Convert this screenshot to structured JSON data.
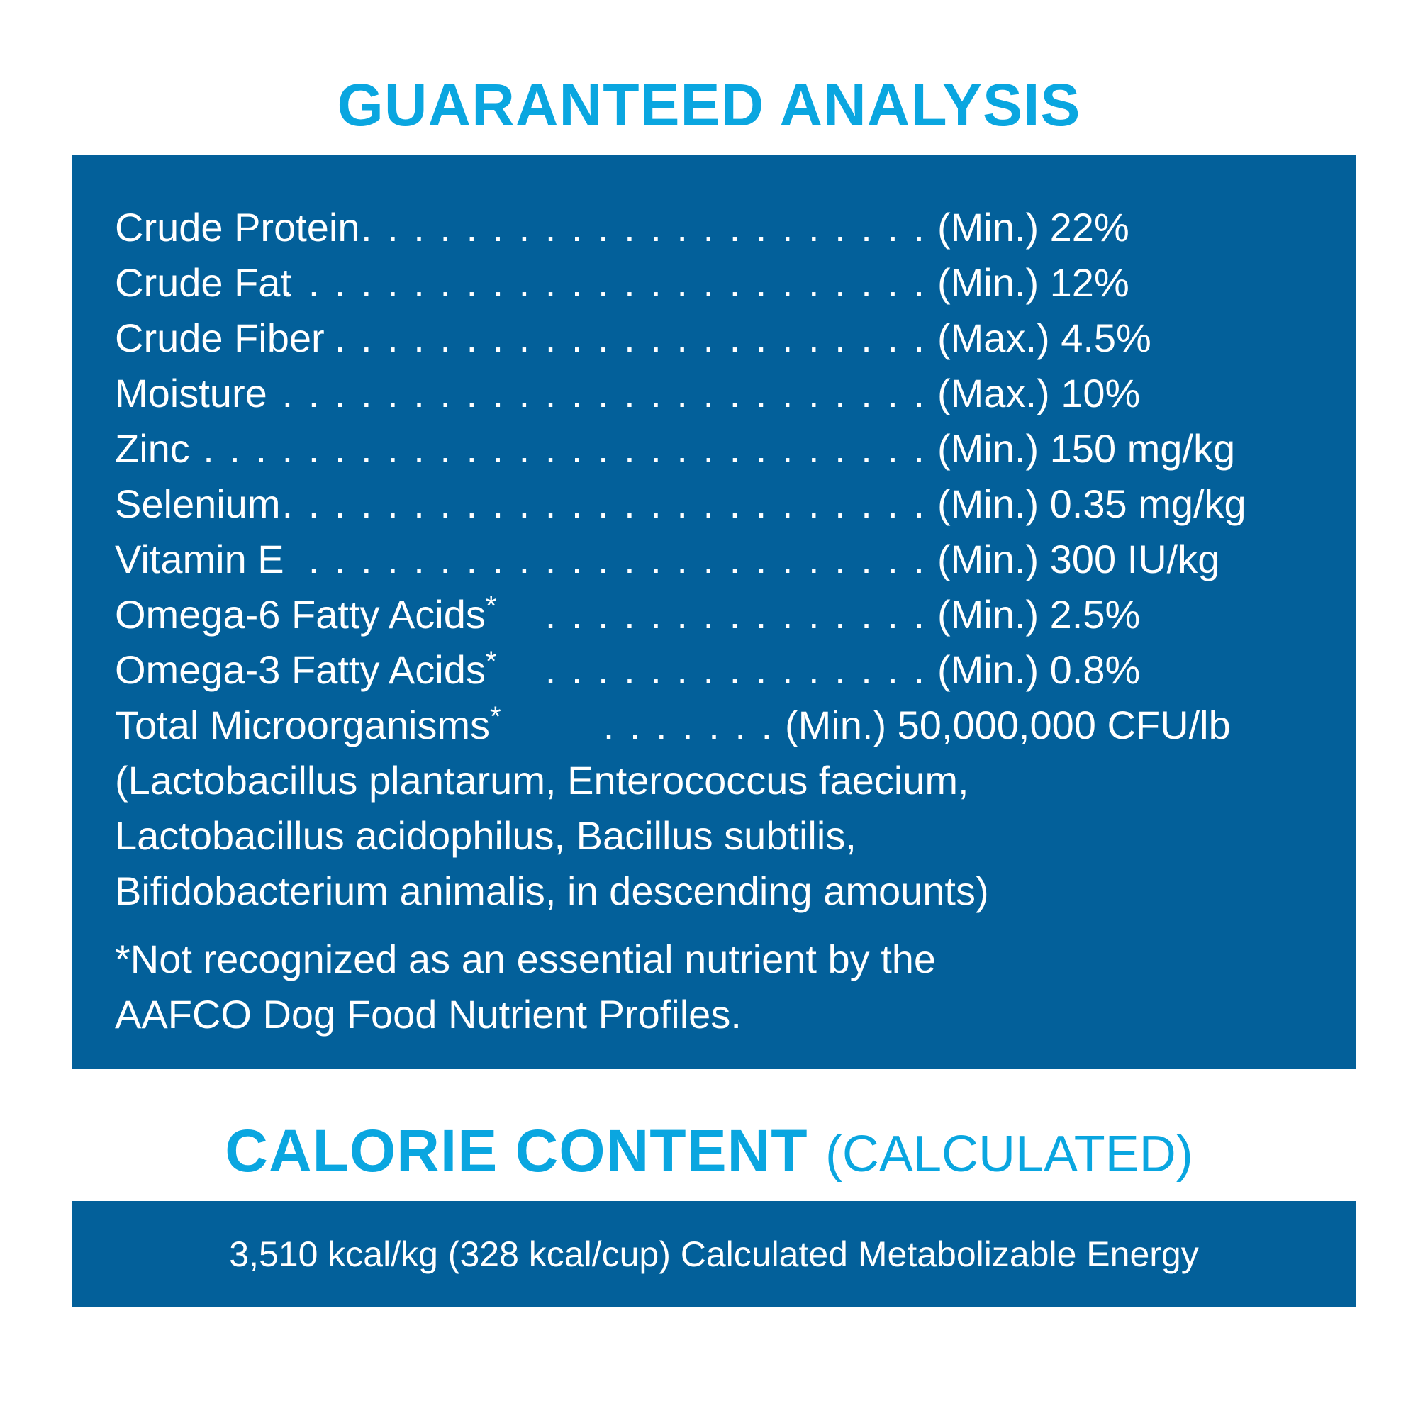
{
  "guaranteed_analysis": {
    "title": "GUARANTEED ANALYSIS",
    "rows": [
      {
        "label": "Crude Protein",
        "dots": ". . . . . . . . . . . . . . . . . . . . . .",
        "value": "(Min.) 22%"
      },
      {
        "label": "Crude Fat",
        "dots": ". . . . . . . . . . . . . . . . . . . . . . . . .",
        "value": "(Min.) 12%"
      },
      {
        "label": "Crude Fiber",
        "dots": ". . . . . . . . . . . . . . . . . . . . . . .",
        "value": "(Max.) 4.5%"
      },
      {
        "label": "Moisture",
        "dots": ". . . . . . . . . . . . . . . . . . . . . . . . .",
        "value": "(Max.) 10%"
      },
      {
        "label": "Zinc",
        "dots": ". . . . . . . . . . . . . . . . . . . . . . . . . . . .",
        "value": "(Min.) 150 mg/kg"
      },
      {
        "label": "Selenium",
        "dots": ". . . . . . . . . . . . . . . . . . . . . . . . .",
        "value": "(Min.) 0.35 mg/kg"
      },
      {
        "label": "Vitamin E",
        "dots": ". . . . . . . . . . . . . . . . . . . . . . . .",
        "value": "(Min.) 300 IU/kg"
      },
      {
        "label": "Omega-6 Fatty Acids",
        "sup": "*",
        "dots": ". . . . . . . . . . . . . . .",
        "value": "(Min.) 2.5%"
      },
      {
        "label": "Omega-3 Fatty Acids",
        "sup": "*",
        "dots": ". . . . . . . . . . . . . . .",
        "value": "(Min.) 0.8%"
      },
      {
        "label": "Total Microorganisms",
        "sup": "*",
        "dots": ". . . . . . .",
        "value": "(Min.) 50,000,000 CFU/lb"
      }
    ],
    "bacteria_line1": "(Lactobacillus plantarum, Enterococcus faecium,",
    "bacteria_line2": "Lactobacillus acidophilus, Bacillus subtilis,",
    "bacteria_line3": "Bifidobacterium animalis, in descending amounts)",
    "footnote_line1": "*Not recognized as an essential nutrient by the",
    "footnote_line2": "AAFCO Dog Food Nutrient Profiles."
  },
  "calorie_content": {
    "title": "CALORIE CONTENT",
    "subtitle": "(CALCULATED)",
    "text": "3,510 kcal/kg (328 kcal/cup) Calculated Metabolizable Energy"
  },
  "colors": {
    "heading": "#0aa6e0",
    "panel": "#03609a",
    "panel_text": "#ffffff"
  }
}
